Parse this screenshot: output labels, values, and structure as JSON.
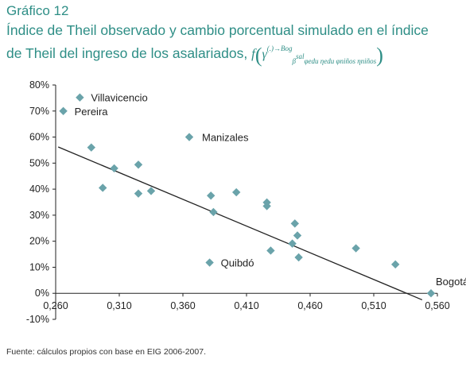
{
  "header": {
    "kicker": "Gráfico 12",
    "title_line1": "Índice de Theil observado y cambio porcentual simulado en el índice",
    "title_line2": "de Theil del ingreso de los asalariados,",
    "formula": {
      "f": "f",
      "gamma": "γ",
      "gamma_sup": "(.)→Bog",
      "beta": "β",
      "beta_sup": "sal",
      "sub_tail": "φedu ηedu φniños ηniños"
    }
  },
  "colors": {
    "title": "#2e8e86",
    "marker": "#6aa3aa",
    "trendline": "#222222",
    "axis": "#222222"
  },
  "chart_data": {
    "type": "scatter",
    "xlim": [
      0.26,
      0.56
    ],
    "ylim": [
      -0.1,
      0.8
    ],
    "xticks": [
      {
        "v": 0.26,
        "label": "0,260"
      },
      {
        "v": 0.31,
        "label": "0,310"
      },
      {
        "v": 0.36,
        "label": "0,360"
      },
      {
        "v": 0.41,
        "label": "0,410"
      },
      {
        "v": 0.46,
        "label": "0,460"
      },
      {
        "v": 0.51,
        "label": "0,510"
      },
      {
        "v": 0.56,
        "label": "0,560"
      }
    ],
    "yticks": [
      {
        "v": -0.1,
        "label": "-10%"
      },
      {
        "v": 0.0,
        "label": "0%"
      },
      {
        "v": 0.1,
        "label": "10%"
      },
      {
        "v": 0.2,
        "label": "20%"
      },
      {
        "v": 0.3,
        "label": "30%"
      },
      {
        "v": 0.4,
        "label": "40%"
      },
      {
        "v": 0.5,
        "label": "50%"
      },
      {
        "v": 0.6,
        "label": "60%"
      },
      {
        "v": 0.7,
        "label": "70%"
      },
      {
        "v": 0.8,
        "label": "80%"
      }
    ],
    "grid": false,
    "points": [
      {
        "x": 0.266,
        "y": 0.7,
        "label": "Pereira"
      },
      {
        "x": 0.279,
        "y": 0.752,
        "label": "Villavicencio"
      },
      {
        "x": 0.288,
        "y": 0.56,
        "label": ""
      },
      {
        "x": 0.297,
        "y": 0.405,
        "label": ""
      },
      {
        "x": 0.306,
        "y": 0.48,
        "label": ""
      },
      {
        "x": 0.325,
        "y": 0.383,
        "label": ""
      },
      {
        "x": 0.325,
        "y": 0.494,
        "label": ""
      },
      {
        "x": 0.335,
        "y": 0.393,
        "label": ""
      },
      {
        "x": 0.365,
        "y": 0.6,
        "label": "Manizales"
      },
      {
        "x": 0.382,
        "y": 0.375,
        "label": ""
      },
      {
        "x": 0.384,
        "y": 0.312,
        "label": ""
      },
      {
        "x": 0.381,
        "y": 0.118,
        "label": "Quibdó"
      },
      {
        "x": 0.402,
        "y": 0.388,
        "label": ""
      },
      {
        "x": 0.426,
        "y": 0.349,
        "label": ""
      },
      {
        "x": 0.426,
        "y": 0.335,
        "label": ""
      },
      {
        "x": 0.429,
        "y": 0.164,
        "label": ""
      },
      {
        "x": 0.446,
        "y": 0.191,
        "label": ""
      },
      {
        "x": 0.448,
        "y": 0.268,
        "label": ""
      },
      {
        "x": 0.45,
        "y": 0.222,
        "label": ""
      },
      {
        "x": 0.451,
        "y": 0.138,
        "label": ""
      },
      {
        "x": 0.496,
        "y": 0.173,
        "label": ""
      },
      {
        "x": 0.527,
        "y": 0.111,
        "label": ""
      },
      {
        "x": 0.555,
        "y": 0.0,
        "label": "Bogotá"
      }
    ],
    "trendline": {
      "x": [
        0.262,
        0.548
      ],
      "y": [
        0.562,
        -0.025
      ]
    }
  },
  "source": "Fuente: cálculos propios con base en EIG 2006-2007."
}
